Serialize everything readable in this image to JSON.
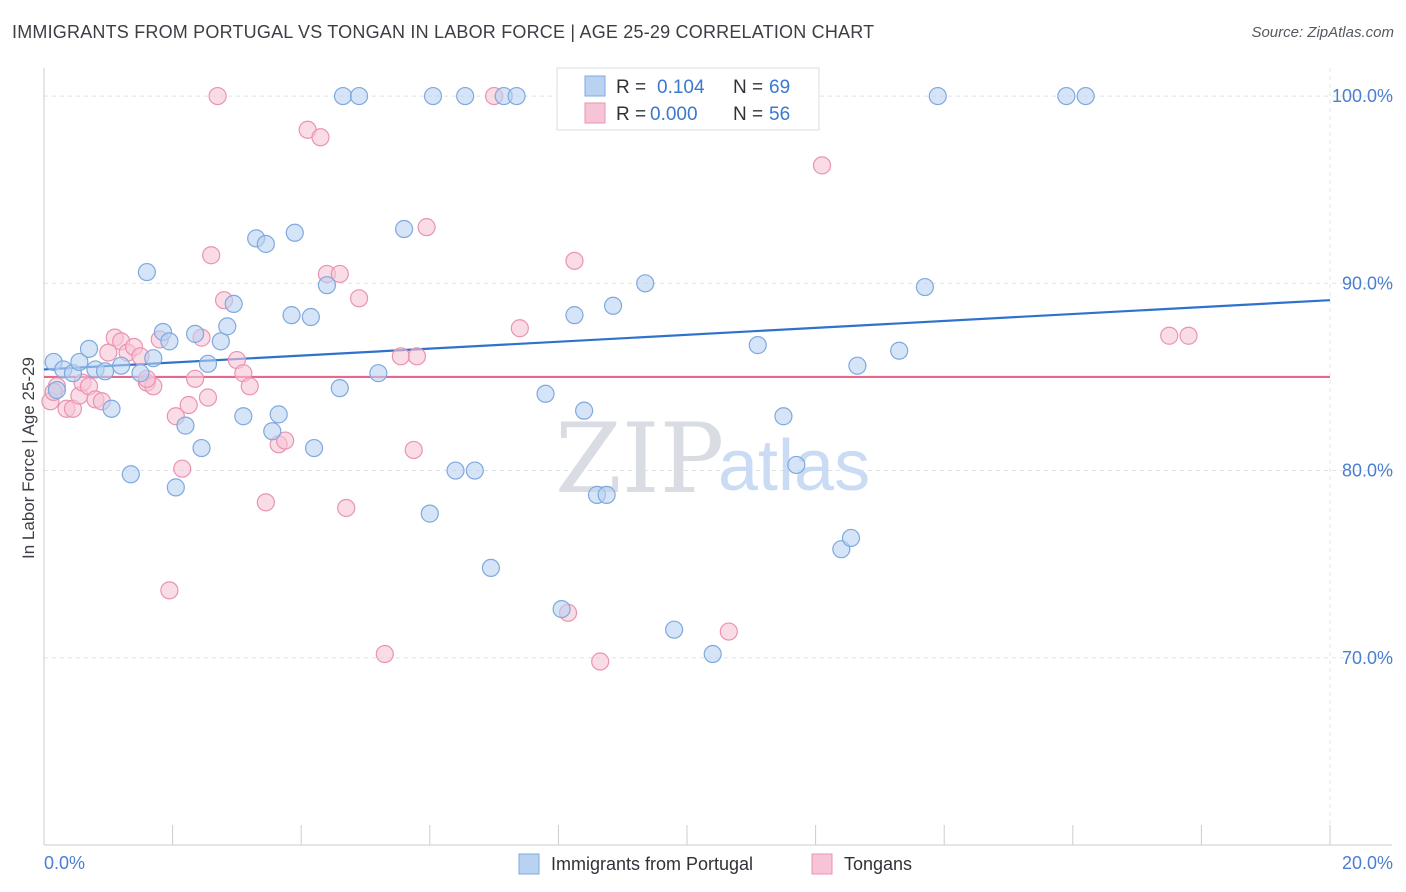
{
  "title": "IMMIGRANTS FROM PORTUGAL VS TONGAN IN LABOR FORCE | AGE 25-29 CORRELATION CHART",
  "source": "Source: ZipAtlas.com",
  "watermark": {
    "zip": "ZIP",
    "atlas": "atlas"
  },
  "colors": {
    "blue_fill": "#b9d2f1",
    "blue_stroke": "#7fa9de",
    "blue_line": "#2f72cc",
    "pink_fill": "#f6c4d6",
    "pink_stroke": "#ea93b1",
    "pink_line": "#e8678f",
    "grid": "#dfe3e8",
    "axis_text": "#4a7fd0"
  },
  "legend": {
    "rows": [
      {
        "r_label": "R =",
        "r_value": "0.104",
        "n_label": "N =",
        "n_value": "69"
      },
      {
        "r_label": "R =",
        "r_value": "0.000",
        "n_label": "N =",
        "n_value": "56"
      }
    ]
  },
  "chart_data": {
    "type": "scatter",
    "title": "IMMIGRANTS FROM PORTUGAL VS TONGAN IN LABOR FORCE | AGE 25-29 CORRELATION CHART",
    "xlabel": "",
    "ylabel": "In Labor Force | Age 25-29",
    "xlim": [
      0,
      20
    ],
    "ylim": [
      60,
      101.5
    ],
    "x_tick_labels": [
      {
        "value": 0,
        "label": "0.0%"
      },
      {
        "value": 20,
        "label": "20.0%"
      }
    ],
    "y_tick_labels": [
      {
        "value": 100,
        "label": "100.0%"
      },
      {
        "value": 90,
        "label": "90.0%"
      },
      {
        "value": 80,
        "label": "80.0%"
      },
      {
        "value": 70,
        "label": "70.0%"
      }
    ],
    "grid": true,
    "legend_position": "top-center",
    "series": [
      {
        "name": "Immigrants from Portugal",
        "color": "#b9d2f1",
        "trend": {
          "x": [
            0,
            20
          ],
          "y": [
            85.4,
            89.1
          ]
        },
        "points": [
          [
            0.15,
            85.8
          ],
          [
            0.3,
            85.4
          ],
          [
            0.45,
            85.2
          ],
          [
            0.55,
            85.8
          ],
          [
            0.7,
            86.5
          ],
          [
            0.8,
            85.4
          ],
          [
            0.95,
            85.3
          ],
          [
            1.05,
            83.3
          ],
          [
            1.2,
            85.6
          ],
          [
            1.35,
            79.8
          ],
          [
            1.5,
            85.2
          ],
          [
            1.6,
            90.6
          ],
          [
            1.7,
            86.0
          ],
          [
            1.85,
            87.4
          ],
          [
            1.95,
            86.9
          ],
          [
            2.05,
            79.1
          ],
          [
            2.2,
            82.4
          ],
          [
            2.35,
            87.3
          ],
          [
            2.45,
            81.2
          ],
          [
            2.55,
            85.7
          ],
          [
            2.75,
            86.9
          ],
          [
            2.85,
            87.7
          ],
          [
            2.95,
            88.9
          ],
          [
            3.1,
            82.9
          ],
          [
            3.3,
            92.4
          ],
          [
            3.45,
            92.1
          ],
          [
            3.55,
            82.1
          ],
          [
            3.65,
            83.0
          ],
          [
            3.85,
            88.3
          ],
          [
            3.9,
            92.7
          ],
          [
            4.15,
            88.2
          ],
          [
            4.2,
            81.2
          ],
          [
            4.4,
            89.9
          ],
          [
            4.6,
            84.4
          ],
          [
            4.65,
            100.0
          ],
          [
            4.9,
            100.0
          ],
          [
            5.2,
            85.2
          ],
          [
            5.6,
            92.9
          ],
          [
            6.0,
            77.7
          ],
          [
            6.05,
            100.0
          ],
          [
            6.4,
            80.0
          ],
          [
            6.55,
            100.0
          ],
          [
            6.7,
            80.0
          ],
          [
            6.95,
            74.8
          ],
          [
            7.15,
            100.0
          ],
          [
            7.35,
            100.0
          ],
          [
            7.8,
            84.1
          ],
          [
            8.05,
            72.6
          ],
          [
            8.25,
            88.3
          ],
          [
            8.4,
            83.2
          ],
          [
            8.6,
            78.7
          ],
          [
            8.75,
            78.7
          ],
          [
            8.85,
            88.8
          ],
          [
            9.2,
            100.0
          ],
          [
            9.35,
            90.0
          ],
          [
            9.8,
            71.5
          ],
          [
            10.4,
            70.2
          ],
          [
            11.1,
            86.7
          ],
          [
            11.5,
            82.9
          ],
          [
            11.7,
            80.3
          ],
          [
            12.4,
            75.8
          ],
          [
            12.55,
            76.4
          ],
          [
            12.65,
            85.6
          ],
          [
            13.3,
            86.4
          ],
          [
            13.7,
            89.8
          ],
          [
            13.9,
            100.0
          ],
          [
            15.9,
            100.0
          ],
          [
            16.2,
            100.0
          ],
          [
            0.2,
            84.3
          ]
        ]
      },
      {
        "name": "Tongans",
        "color": "#f6c4d6",
        "trend": {
          "x": [
            0,
            20
          ],
          "y": [
            85.0,
            85.0
          ]
        },
        "points": [
          [
            0.1,
            83.7
          ],
          [
            0.2,
            84.5
          ],
          [
            0.35,
            83.3
          ],
          [
            0.45,
            83.3
          ],
          [
            0.55,
            84.0
          ],
          [
            0.6,
            84.7
          ],
          [
            0.7,
            84.5
          ],
          [
            0.8,
            83.8
          ],
          [
            0.9,
            83.7
          ],
          [
            1.0,
            86.3
          ],
          [
            1.1,
            87.1
          ],
          [
            1.2,
            86.9
          ],
          [
            1.3,
            86.3
          ],
          [
            1.4,
            86.6
          ],
          [
            1.5,
            86.1
          ],
          [
            1.6,
            84.7
          ],
          [
            1.7,
            84.5
          ],
          [
            1.8,
            87.0
          ],
          [
            1.95,
            73.6
          ],
          [
            2.05,
            82.9
          ],
          [
            2.15,
            80.1
          ],
          [
            2.25,
            83.5
          ],
          [
            2.35,
            84.9
          ],
          [
            2.45,
            87.1
          ],
          [
            2.55,
            83.9
          ],
          [
            2.6,
            91.5
          ],
          [
            2.7,
            100.0
          ],
          [
            2.8,
            89.1
          ],
          [
            3.0,
            85.9
          ],
          [
            3.1,
            85.2
          ],
          [
            3.2,
            84.5
          ],
          [
            3.45,
            78.3
          ],
          [
            3.65,
            81.4
          ],
          [
            3.75,
            81.6
          ],
          [
            4.1,
            98.2
          ],
          [
            4.3,
            97.8
          ],
          [
            4.4,
            90.5
          ],
          [
            4.6,
            90.5
          ],
          [
            4.7,
            78.0
          ],
          [
            4.9,
            89.2
          ],
          [
            5.3,
            70.2
          ],
          [
            5.55,
            86.1
          ],
          [
            5.75,
            81.1
          ],
          [
            5.8,
            86.1
          ],
          [
            5.95,
            93.0
          ],
          [
            7.0,
            100.0
          ],
          [
            7.4,
            87.6
          ],
          [
            8.15,
            72.4
          ],
          [
            8.25,
            91.2
          ],
          [
            8.65,
            69.8
          ],
          [
            10.65,
            71.4
          ],
          [
            12.1,
            96.3
          ],
          [
            17.5,
            87.2
          ],
          [
            17.8,
            87.2
          ],
          [
            0.15,
            84.2
          ],
          [
            1.6,
            84.9
          ]
        ]
      }
    ]
  },
  "bottom_legend": [
    {
      "label": "Immigrants from Portugal"
    },
    {
      "label": "Tongans"
    }
  ]
}
